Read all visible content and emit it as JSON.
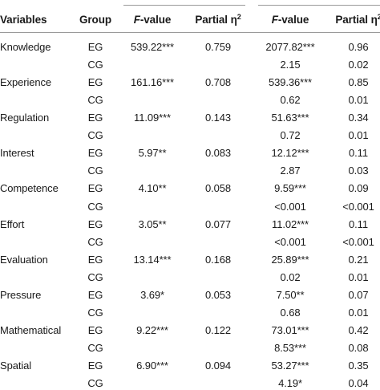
{
  "header": {
    "variables": "Variables",
    "group": "Group",
    "fvalue_italic": "F",
    "fvalue_rest": "-value",
    "partial_eta": "Partial η",
    "partial_eta_sup": "2"
  },
  "rows": [
    {
      "variable": "Knowledge",
      "group": "EG",
      "f1": "539.22***",
      "eta1": "0.759",
      "f2": "2077.82***",
      "eta2": "0.96"
    },
    {
      "variable": "",
      "group": "CG",
      "f1": "",
      "eta1": "",
      "f2": "2.15",
      "eta2": "0.02"
    },
    {
      "variable": "Experience",
      "group": "EG",
      "f1": "161.16***",
      "eta1": "0.708",
      "f2": "539.36***",
      "eta2": "0.85"
    },
    {
      "variable": "",
      "group": "CG",
      "f1": "",
      "eta1": "",
      "f2": "0.62",
      "eta2": "0.01"
    },
    {
      "variable": "Regulation",
      "group": "EG",
      "f1": "11.09***",
      "eta1": "0.143",
      "f2": "51.63***",
      "eta2": "0.34"
    },
    {
      "variable": "",
      "group": "CG",
      "f1": "",
      "eta1": "",
      "f2": "0.72",
      "eta2": "0.01"
    },
    {
      "variable": "Interest",
      "group": "EG",
      "f1": "5.97**",
      "eta1": "0.083",
      "f2": "12.12***",
      "eta2": "0.11"
    },
    {
      "variable": "",
      "group": "CG",
      "f1": "",
      "eta1": "",
      "f2": "2.87",
      "eta2": "0.03"
    },
    {
      "variable": "Competence",
      "group": "EG",
      "f1": "4.10**",
      "eta1": "0.058",
      "f2": "9.59***",
      "eta2": "0.09"
    },
    {
      "variable": "",
      "group": "CG",
      "f1": "",
      "eta1": "",
      "f2": "<0.001",
      "eta2": "<0.001"
    },
    {
      "variable": "Effort",
      "group": "EG",
      "f1": "3.05**",
      "eta1": "0.077",
      "f2": "11.02***",
      "eta2": "0.11"
    },
    {
      "variable": "",
      "group": "CG",
      "f1": "",
      "eta1": "",
      "f2": "<0.001",
      "eta2": "<0.001"
    },
    {
      "variable": "Evaluation",
      "group": "EG",
      "f1": "13.14***",
      "eta1": "0.168",
      "f2": "25.89***",
      "eta2": "0.21"
    },
    {
      "variable": "",
      "group": "CG",
      "f1": "",
      "eta1": "",
      "f2": "0.02",
      "eta2": "0.01"
    },
    {
      "variable": "Pressure",
      "group": "EG",
      "f1": "3.69*",
      "eta1": "0.053",
      "f2": "7.50**",
      "eta2": "0.07"
    },
    {
      "variable": "",
      "group": "CG",
      "f1": "",
      "eta1": "",
      "f2": "0.68",
      "eta2": "0.01"
    },
    {
      "variable": "Mathematical",
      "group": "EG",
      "f1": "9.22***",
      "eta1": "0.122",
      "f2": "73.01***",
      "eta2": "0.42"
    },
    {
      "variable": "",
      "group": "CG",
      "f1": "",
      "eta1": "",
      "f2": "8.53***",
      "eta2": "0.08"
    },
    {
      "variable": "Spatial",
      "group": "EG",
      "f1": "6.90***",
      "eta1": "0.094",
      "f2": "53.27***",
      "eta2": "0.35"
    },
    {
      "variable": "",
      "group": "CG",
      "f1": "",
      "eta1": "",
      "f2": "4.19*",
      "eta2": "0.04"
    }
  ]
}
